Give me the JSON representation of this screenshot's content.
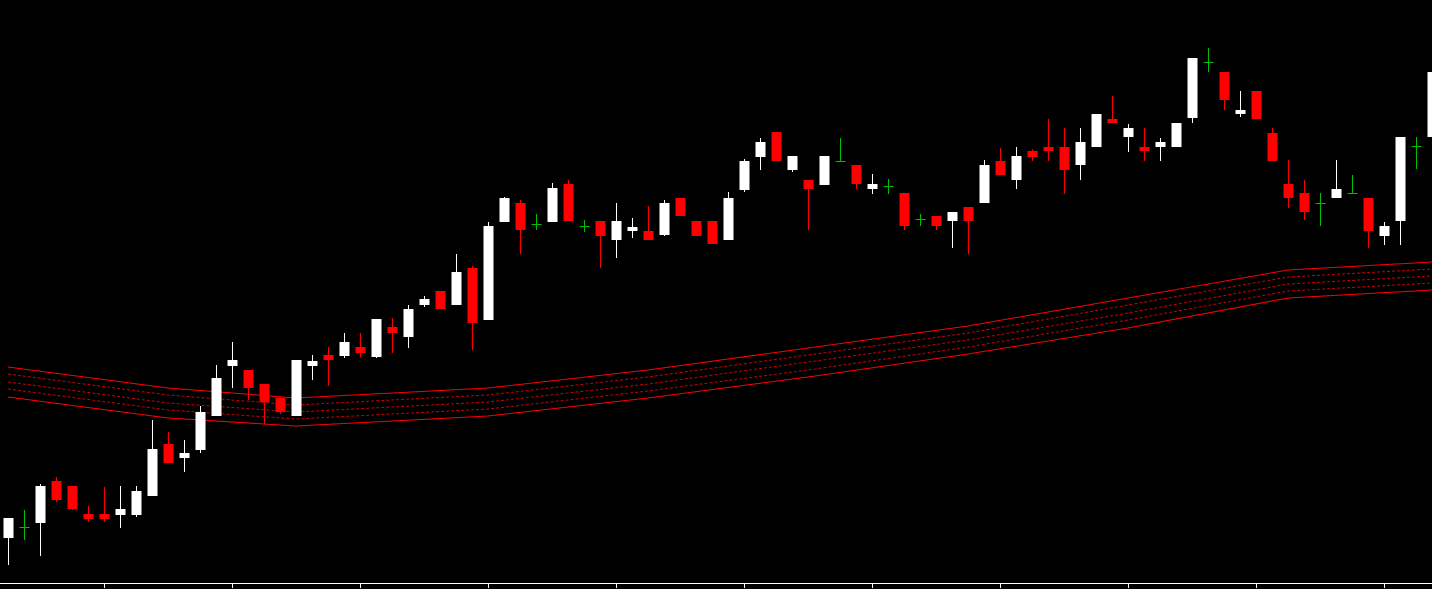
{
  "chart_data": {
    "type": "candlestick",
    "up_color": "#ffffff",
    "down_color": "#ff0000",
    "doji_color": "#00c000",
    "axis_color": "#ffffff",
    "ylim": [
      0,
      583
    ],
    "xlim": [
      -0.5,
      89.5
    ],
    "xticks": [
      6,
      14,
      22,
      30,
      38,
      46,
      54,
      62,
      70,
      78,
      86
    ],
    "open": [
      45,
      56,
      60,
      102,
      97,
      69,
      69,
      68,
      68,
      87,
      139,
      125,
      133,
      167,
      217,
      213,
      199,
      185,
      167,
      217,
      228,
      227,
      236,
      226,
      256,
      246,
      278,
      292,
      278,
      315,
      263,
      361,
      380,
      359,
      361,
      399,
      357,
      362,
      343,
      352,
      352,
      348,
      385,
      362,
      362,
      343,
      393,
      426,
      451,
      413,
      403,
      398,
      422,
      418,
      394,
      397,
      390,
      364,
      367,
      362,
      376,
      380,
      422,
      403,
      432,
      436,
      436,
      418,
      436,
      464,
      446,
      436,
      436,
      436,
      465,
      521,
      511,
      469,
      492,
      450,
      399,
      390,
      380,
      385,
      390,
      385,
      347,
      362,
      437,
      446
    ],
    "high": [
      65,
      73,
      99,
      106,
      97,
      77,
      96,
      97,
      97,
      163,
      151,
      143,
      177,
      218,
      241,
      213,
      199,
      185,
      223,
      228,
      236,
      250,
      250,
      264,
      265,
      278,
      287,
      292,
      329,
      317,
      361,
      386,
      383,
      369,
      400,
      403,
      363,
      362,
      380,
      365,
      377,
      383,
      385,
      362,
      362,
      391,
      424,
      445,
      451,
      427,
      403,
      427,
      445,
      418,
      409,
      404,
      390,
      369,
      367,
      371,
      376,
      423,
      435,
      436,
      434,
      464,
      455,
      455,
      469,
      487,
      459,
      455,
      445,
      460,
      525,
      535,
      511,
      492,
      492,
      455,
      423,
      403,
      390,
      423,
      408,
      385,
      361,
      446,
      446,
      511
    ],
    "low": [
      18,
      43,
      27,
      81,
      73,
      61,
      61,
      55,
      66,
      87,
      120,
      111,
      130,
      167,
      195,
      183,
      159,
      169,
      167,
      203,
      197,
      225,
      226,
      225,
      230,
      235,
      276,
      274,
      278,
      233,
      263,
      361,
      329,
      353,
      361,
      362,
      351,
      315,
      325,
      345,
      343,
      347,
      367,
      347,
      339,
      343,
      391,
      413,
      422,
      411,
      353,
      398,
      421,
      394,
      389,
      389,
      353,
      357,
      353,
      335,
      329,
      380,
      408,
      394,
      422,
      422,
      389,
      403,
      436,
      460,
      431,
      422,
      422,
      436,
      460,
      511,
      473,
      466,
      464,
      422,
      375,
      363,
      357,
      385,
      390,
      335,
      338,
      338,
      414,
      446
    ],
    "close": [
      65,
      56,
      97,
      83,
      74,
      64,
      64,
      74,
      92,
      134,
      120,
      130,
      171,
      205,
      223,
      195,
      181,
      171,
      223,
      222,
      223,
      241,
      230,
      264,
      250,
      274,
      284,
      274,
      311,
      260,
      357,
      385,
      353,
      359,
      395,
      362,
      357,
      347,
      362,
      356,
      343,
      380,
      367,
      347,
      339,
      385,
      422,
      441,
      422,
      427,
      394,
      427,
      422,
      399,
      399,
      397,
      357,
      364,
      357,
      371,
      362,
      418,
      408,
      427,
      426,
      432,
      413,
      441,
      469,
      460,
      455,
      432,
      441,
      460,
      525,
      521,
      483,
      473,
      464,
      422,
      385,
      371,
      380,
      394,
      390,
      352,
      357,
      446,
      437,
      511
    ],
    "overlay_x": [
      0,
      10,
      18,
      30,
      40,
      50,
      60,
      70,
      80,
      89
    ],
    "overlays": [
      {
        "color": "#ff0000",
        "dashed": false,
        "values": [
          216,
          195,
          185,
          195,
          213,
          235,
          257,
          285,
          313,
          321
        ]
      },
      {
        "color": "#ff0000",
        "dashed": true,
        "values": [
          209,
          188,
          178,
          188,
          206,
          228,
          250,
          278,
          306,
          314
        ]
      },
      {
        "color": "#ff0000",
        "dashed": true,
        "values": [
          201,
          180,
          171,
          181,
          199,
          221,
          243,
          270,
          299,
          307
        ]
      },
      {
        "color": "#ff0000",
        "dashed": true,
        "values": [
          194,
          173,
          164,
          174,
          192,
          213,
          236,
          263,
          292,
          300
        ]
      },
      {
        "color": "#ff0000",
        "dashed": false,
        "values": [
          186,
          165,
          157,
          167,
          185,
          206,
          229,
          255,
          285,
          293
        ]
      }
    ]
  }
}
